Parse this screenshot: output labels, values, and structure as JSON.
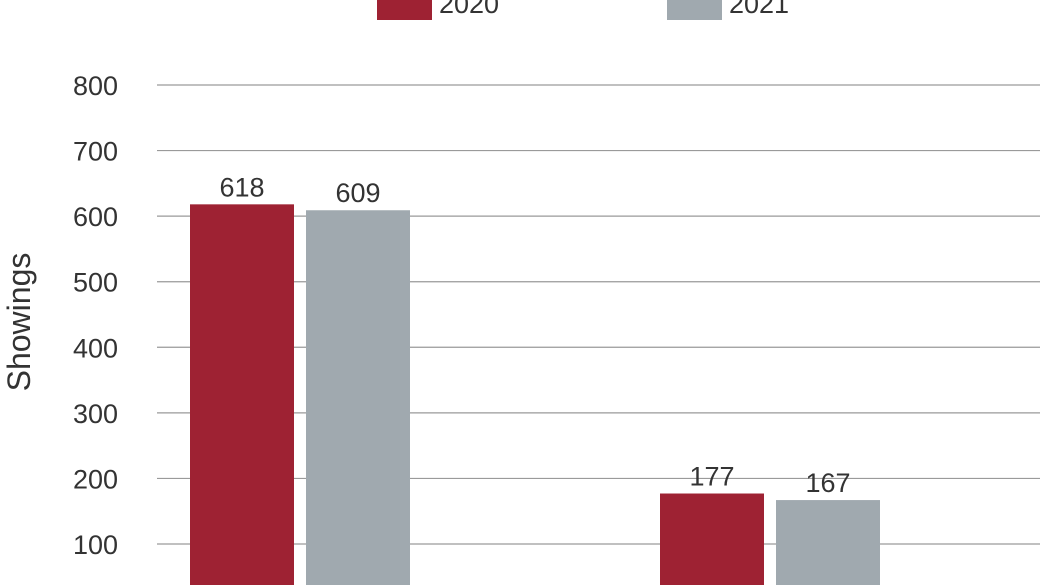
{
  "chart_data": {
    "type": "bar",
    "ylabel": "Showings",
    "ylim": [
      0,
      800
    ],
    "yticks": [
      100,
      200,
      300,
      400,
      500,
      600,
      700,
      800
    ],
    "grid": true,
    "legend_position": "top",
    "categories": [
      "",
      ""
    ],
    "series": [
      {
        "name": "2020",
        "color": "#9e2233",
        "values": [
          618,
          177
        ]
      },
      {
        "name": "2021",
        "color": "#a0a9af",
        "values": [
          609,
          167
        ]
      }
    ]
  }
}
